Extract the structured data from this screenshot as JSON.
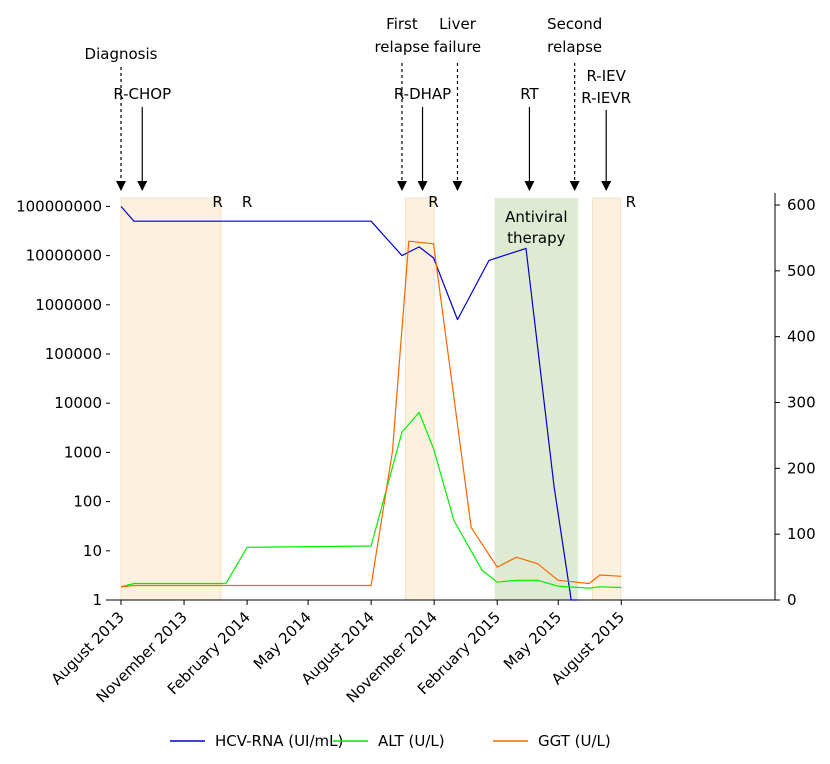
{
  "chart_data": {
    "type": "line",
    "title": "",
    "x_tick_labels": [
      "August 2013",
      "November 2013",
      "February 2014",
      "May 2014",
      "August 2014",
      "November 2014",
      "February 2015",
      "May 2015",
      "August 2015"
    ],
    "x_tick_dates": [
      "2013-08-01",
      "2013-11-01",
      "2014-02-01",
      "2014-05-01",
      "2014-08-01",
      "2014-11-01",
      "2015-02-01",
      "2015-05-01",
      "2015-08-01"
    ],
    "xlim": [
      "2013-07-20",
      "2015-09-10"
    ],
    "y_left": {
      "scale": "log",
      "ylim": [
        1,
        100000000
      ],
      "tick_labels": [
        "1",
        "10",
        "100",
        "1000",
        "10000",
        "100000",
        "1000000",
        "10000000",
        "100000000"
      ]
    },
    "y_right": {
      "scale": "linear",
      "ylim": [
        0,
        600
      ],
      "ticks": [
        0,
        100,
        200,
        300,
        400,
        500,
        600
      ]
    },
    "legend_position": "bottom",
    "series": [
      {
        "name": "HCV-RNA (UI/mL)",
        "axis": "left",
        "color": "#0000cc",
        "x": [
          "2013-08-01",
          "2013-08-20",
          "2014-08-01",
          "2014-09-15",
          "2014-10-10",
          "2014-10-31",
          "2014-12-05",
          "2015-01-20",
          "2015-03-15",
          "2015-04-25",
          "2015-05-20",
          "2015-05-29"
        ],
        "y": [
          100000000,
          50000000,
          50000000,
          10000000,
          15000000,
          9000000,
          500000,
          8000000,
          14000000,
          200,
          1,
          1
        ]
      },
      {
        "name": "ALT (U/L)",
        "axis": "right",
        "color": "#00ee00",
        "x": [
          "2013-08-01",
          "2013-08-20",
          "2014-01-01",
          "2014-02-01",
          "2014-08-01",
          "2014-09-15",
          "2014-10-10",
          "2014-10-31",
          "2014-11-30",
          "2015-01-10",
          "2015-02-01",
          "2015-03-01",
          "2015-04-01",
          "2015-05-01",
          "2015-06-15",
          "2015-07-01",
          "2015-08-01"
        ],
        "y": [
          20,
          25,
          25,
          80,
          82,
          255,
          285,
          230,
          120,
          45,
          27,
          30,
          30,
          21,
          18,
          20,
          19
        ]
      },
      {
        "name": "GGT (U/L)",
        "axis": "right",
        "color": "#ff6600",
        "x": [
          "2013-08-01",
          "2013-08-20",
          "2014-08-01",
          "2014-09-01",
          "2014-09-25",
          "2014-10-31",
          "2014-12-25",
          "2015-02-01",
          "2015-03-01",
          "2015-04-01",
          "2015-05-01",
          "2015-06-15",
          "2015-07-01",
          "2015-08-01"
        ],
        "y": [
          20,
          22,
          22,
          225,
          545,
          541,
          110,
          50,
          65,
          55,
          30,
          25,
          38,
          36
        ]
      }
    ],
    "shaded_regions": [
      {
        "start": "2013-08-01",
        "end": "2013-12-25",
        "color": "#fbf1de",
        "label": "R-CHOP"
      },
      {
        "start": "2014-09-20",
        "end": "2014-11-01",
        "color": "#fbf1de",
        "label": "R-DHAP"
      },
      {
        "start": "2015-01-28",
        "end": "2015-05-30",
        "color": "#deebd2",
        "label": "Antiviral therapy"
      },
      {
        "start": "2015-06-20",
        "end": "2015-07-31",
        "color": "#fbf1de",
        "label": "R-IEV R-IEVR"
      }
    ],
    "event_arrows": [
      {
        "date": "2013-08-01",
        "label": [
          "Diagnosis"
        ],
        "style": "dashed"
      },
      {
        "date": "2013-09-01",
        "label": [
          "R-CHOP"
        ],
        "style": "solid"
      },
      {
        "date": "2014-09-15",
        "label": [
          "First",
          "relapse"
        ],
        "style": "dashed"
      },
      {
        "date": "2014-10-15",
        "label": [
          "R-DHAP"
        ],
        "style": "solid"
      },
      {
        "date": "2014-12-05",
        "label": [
          "Liver",
          "failure"
        ],
        "style": "dashed"
      },
      {
        "date": "2015-03-20",
        "label": [
          "RT"
        ],
        "style": "solid"
      },
      {
        "date": "2015-05-25",
        "label": [
          "Second",
          "relapse"
        ],
        "style": "dashed"
      },
      {
        "date": "2015-07-10",
        "label": [
          "R-IEV",
          "R-IEVR"
        ],
        "style": "solid"
      }
    ],
    "r_markers": [
      {
        "date": "2013-12-20",
        "text": "R"
      },
      {
        "date": "2014-02-01",
        "text": "R"
      },
      {
        "date": "2014-10-31",
        "text": "R"
      },
      {
        "date": "2015-08-15",
        "text": "R"
      }
    ],
    "antiviral_label": [
      "Antiviral",
      "therapy"
    ]
  }
}
